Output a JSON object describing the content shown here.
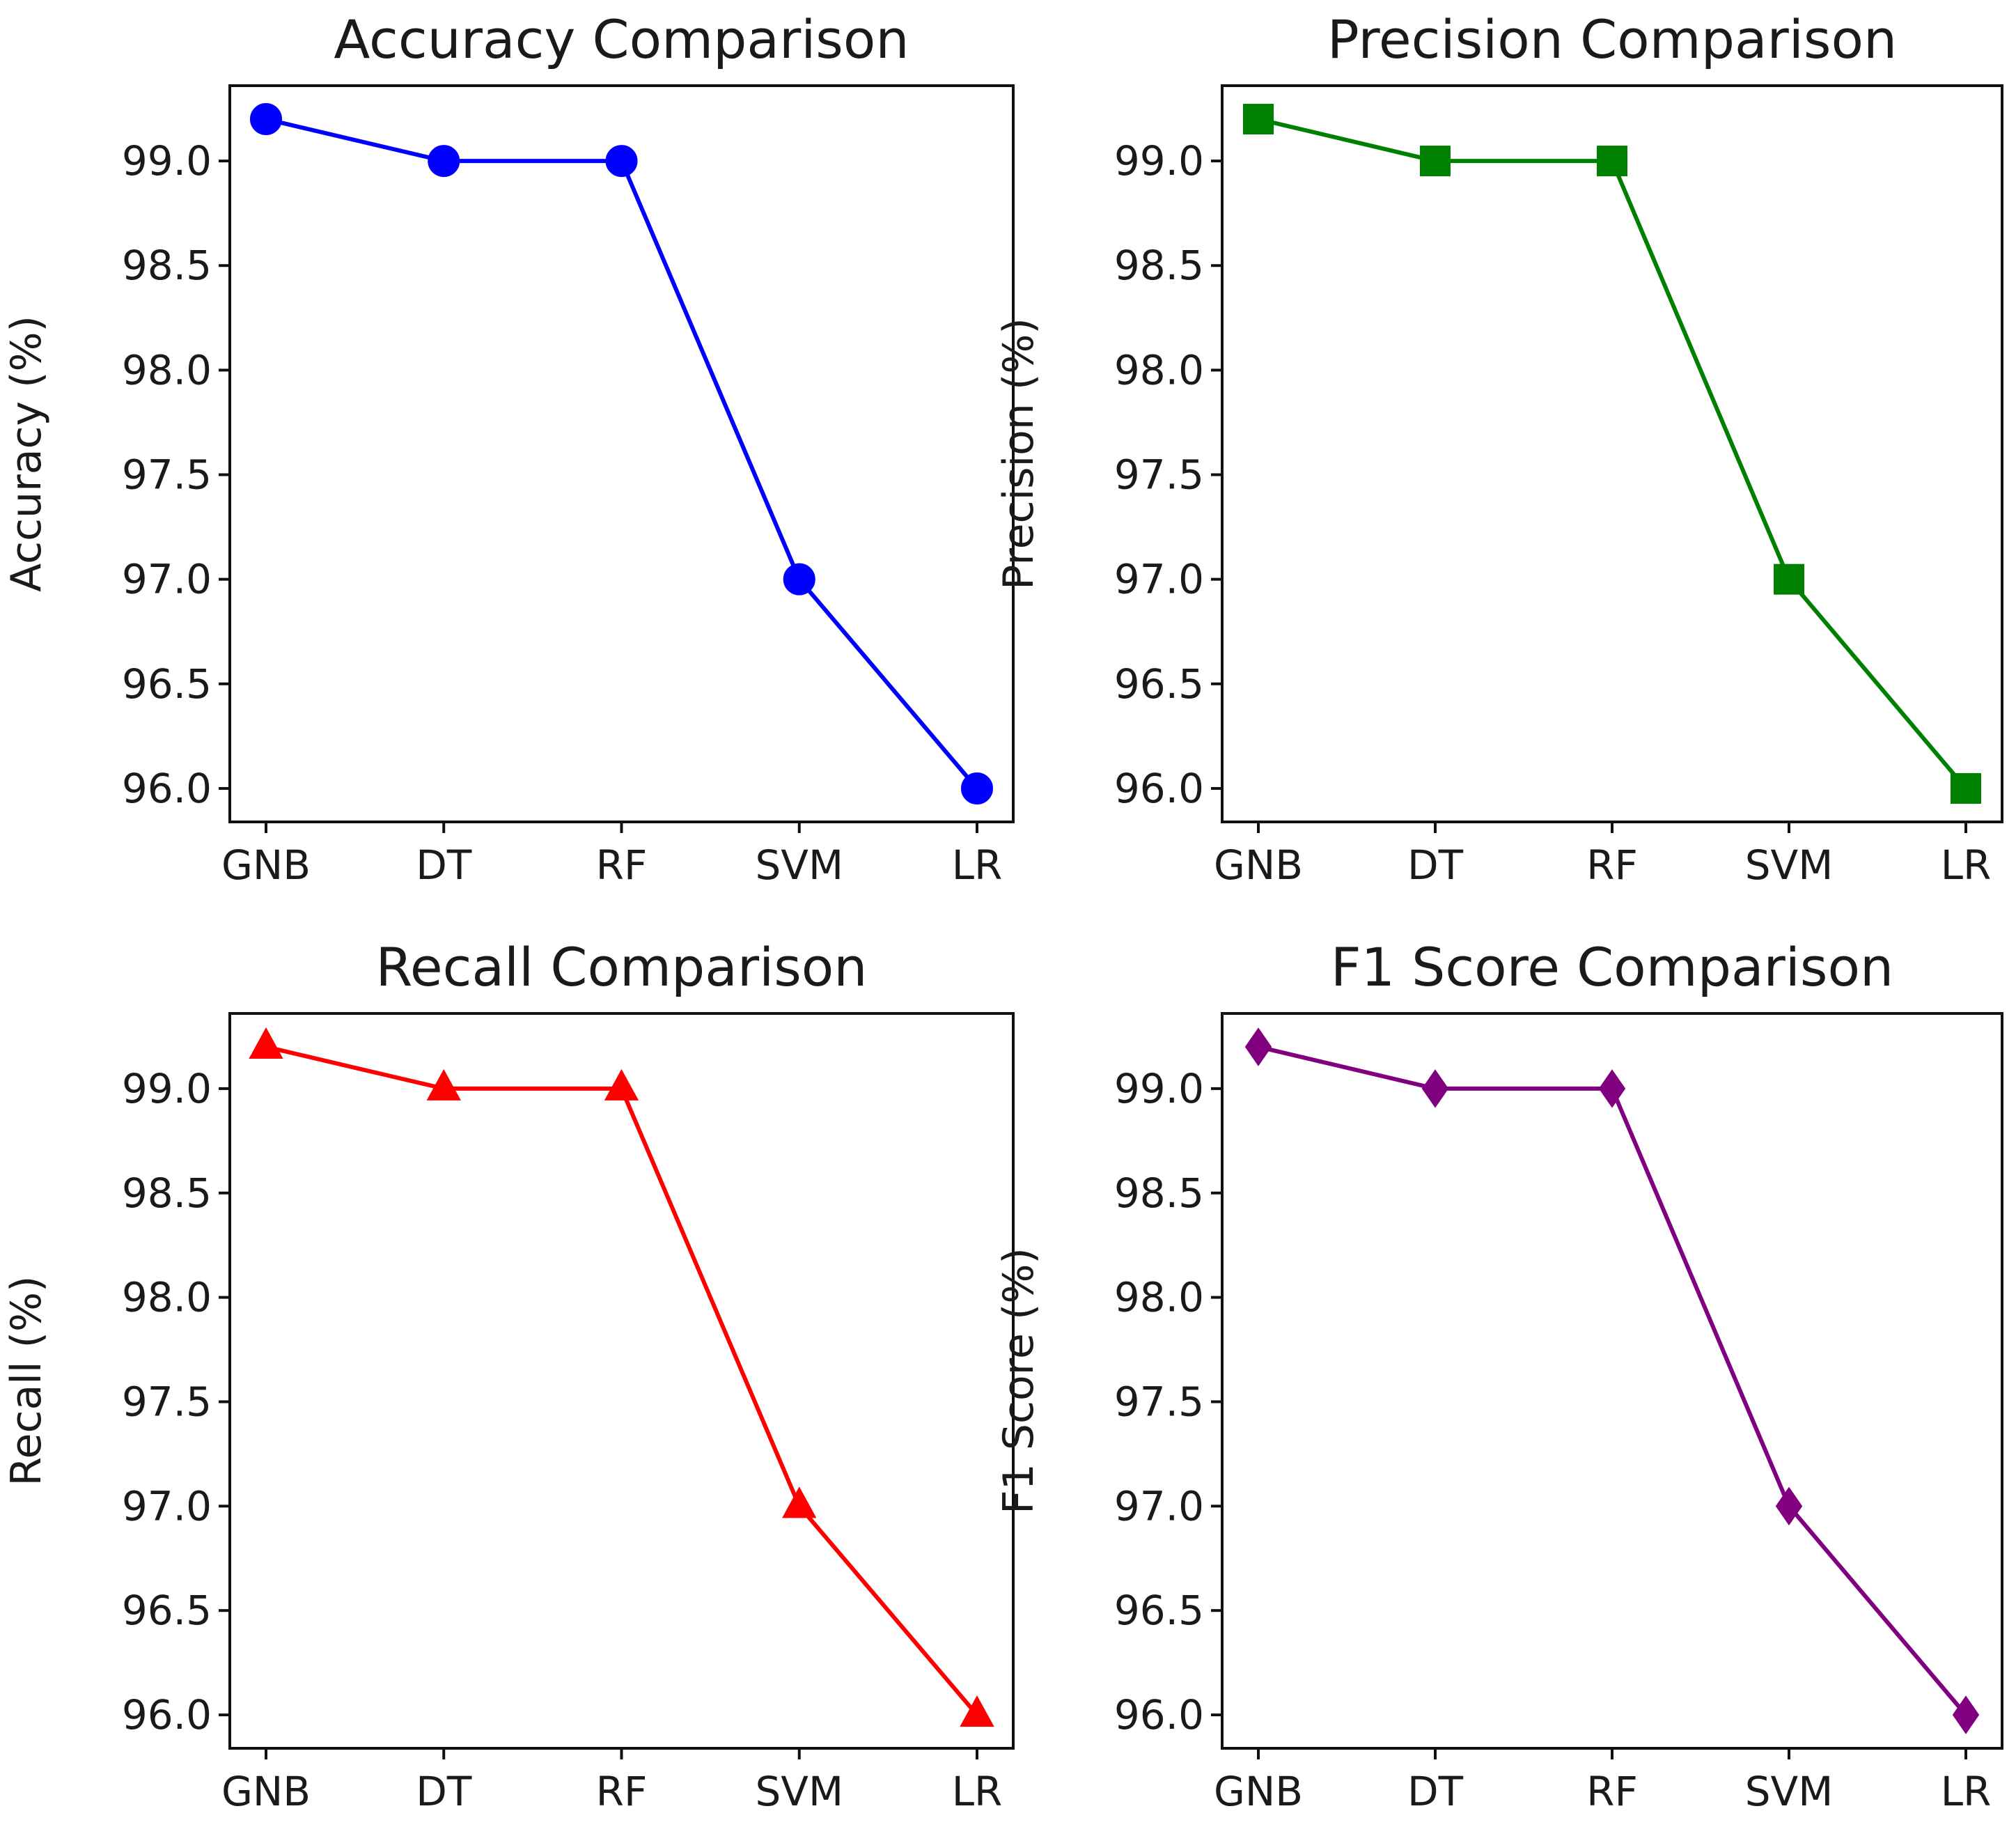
{
  "chart_data": [
    {
      "type": "line",
      "title": "Accuracy Comparison",
      "xlabel": "",
      "ylabel": "Accuracy (%)",
      "categories": [
        "GNB",
        "DT",
        "RF",
        "SVM",
        "LR"
      ],
      "values": [
        99.2,
        99.0,
        99.0,
        97.0,
        96.0
      ],
      "ylim": [
        95.84,
        99.36
      ],
      "yticks": [
        "96.0",
        "96.5",
        "97.0",
        "97.5",
        "98.0",
        "98.5",
        "99.0"
      ],
      "color": "#0000ff",
      "marker": "circle",
      "grid": false
    },
    {
      "type": "line",
      "title": "Precision Comparison",
      "xlabel": "",
      "ylabel": "Precision (%)",
      "categories": [
        "GNB",
        "DT",
        "RF",
        "SVM",
        "LR"
      ],
      "values": [
        99.2,
        99.0,
        99.0,
        97.0,
        96.0
      ],
      "ylim": [
        95.84,
        99.36
      ],
      "yticks": [
        "96.0",
        "96.5",
        "97.0",
        "97.5",
        "98.0",
        "98.5",
        "99.0"
      ],
      "color": "#008000",
      "marker": "square",
      "grid": false
    },
    {
      "type": "line",
      "title": "Recall Comparison",
      "xlabel": "",
      "ylabel": "Recall (%)",
      "categories": [
        "GNB",
        "DT",
        "RF",
        "SVM",
        "LR"
      ],
      "values": [
        99.2,
        99.0,
        99.0,
        97.0,
        96.0
      ],
      "ylim": [
        95.84,
        99.36
      ],
      "yticks": [
        "96.0",
        "96.5",
        "97.0",
        "97.5",
        "98.0",
        "98.5",
        "99.0"
      ],
      "color": "#ff0000",
      "marker": "triangle",
      "grid": false
    },
    {
      "type": "line",
      "title": "F1 Score Comparison",
      "xlabel": "",
      "ylabel": "F1 Score (%)",
      "categories": [
        "GNB",
        "DT",
        "RF",
        "SVM",
        "LR"
      ],
      "values": [
        99.2,
        99.0,
        99.0,
        97.0,
        96.0
      ],
      "ylim": [
        95.84,
        99.36
      ],
      "yticks": [
        "96.0",
        "96.5",
        "97.0",
        "97.5",
        "98.0",
        "98.5",
        "99.0"
      ],
      "color": "#800080",
      "marker": "diamond",
      "grid": false
    }
  ]
}
